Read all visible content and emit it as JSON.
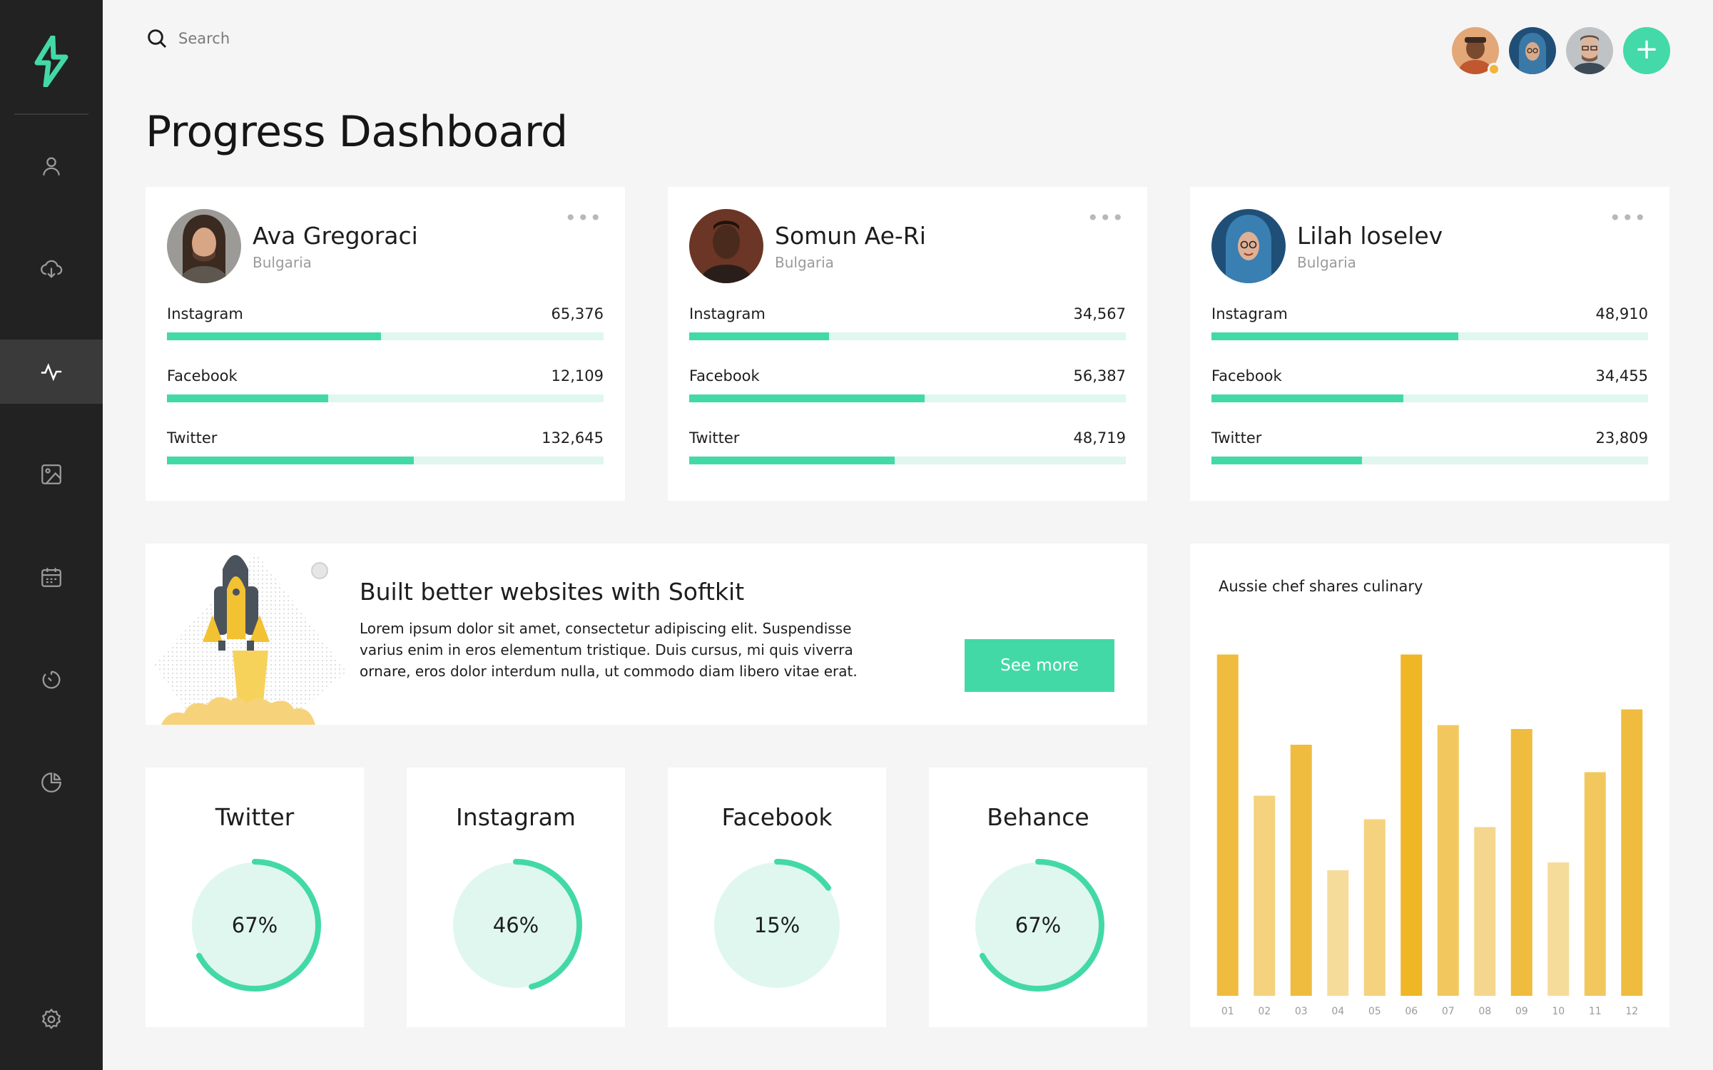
{
  "app": {
    "brand_color": "#43d9a6",
    "sidebar_color": "#222222"
  },
  "sidebar": {
    "items": [
      {
        "icon": "user-icon",
        "active": false
      },
      {
        "icon": "cloud-download-icon",
        "active": false
      },
      {
        "icon": "activity-icon",
        "active": true
      },
      {
        "icon": "image-icon",
        "active": false
      },
      {
        "icon": "calendar-icon",
        "active": false
      },
      {
        "icon": "timer-icon",
        "active": false
      },
      {
        "icon": "pie-chart-icon",
        "active": false
      },
      {
        "icon": "gear-icon",
        "active": false
      }
    ]
  },
  "search": {
    "placeholder": "Search"
  },
  "page": {
    "title": "Progress Dashboard"
  },
  "profiles": [
    {
      "name": "Ava Gregoraci",
      "country": "Bulgaria",
      "metrics": [
        {
          "label": "Instagram",
          "value": "65,376",
          "progress": 0.49
        },
        {
          "label": "Facebook",
          "value": "12,109",
          "progress": 0.37
        },
        {
          "label": "Twitter",
          "value": "132,645",
          "progress": 0.565
        }
      ]
    },
    {
      "name": "Somun Ae-Ri",
      "country": "Bulgaria",
      "metrics": [
        {
          "label": "Instagram",
          "value": "34,567",
          "progress": 0.32
        },
        {
          "label": "Facebook",
          "value": "56,387",
          "progress": 0.54
        },
        {
          "label": "Twitter",
          "value": "48,719",
          "progress": 0.47
        }
      ]
    },
    {
      "name": "Lilah loselev",
      "country": "Bulgaria",
      "metrics": [
        {
          "label": "Instagram",
          "value": "48,910",
          "progress": 0.565
        },
        {
          "label": "Facebook",
          "value": "34,455",
          "progress": 0.44
        },
        {
          "label": "Twitter",
          "value": "23,809",
          "progress": 0.345
        }
      ]
    }
  ],
  "promo": {
    "title": "Built better websites with Softkit",
    "text": "Lorem ipsum dolor sit amet, consectetur adipiscing elit. Suspendisse varius enim in eros elementum tristique. Duis cursus, mi quis viverra ornare, eros dolor interdum nulla, ut commodo diam libero vitae erat.",
    "button_label": "See more"
  },
  "social": [
    {
      "title": "Twitter",
      "label": "67%",
      "value": 0.67
    },
    {
      "title": "Instagram",
      "label": "46%",
      "value": 0.46
    },
    {
      "title": "Facebook",
      "label": "15%",
      "value": 0.15
    },
    {
      "title": "Behance",
      "label": "67%",
      "value": 0.67
    }
  ],
  "chart_data": {
    "type": "bar",
    "title": "Aussie chef shares culinary",
    "categories": [
      "01",
      "02",
      "03",
      "04",
      "05",
      "06",
      "07",
      "08",
      "09",
      "10",
      "11",
      "12"
    ],
    "values": [
      87,
      51,
      64,
      32,
      45,
      87,
      69,
      43,
      68,
      34,
      57,
      73
    ],
    "ylim": [
      0,
      100
    ],
    "grid": false,
    "colors": [
      "#efbc3f",
      "#f4d27e",
      "#efbc3f",
      "#f6dc9b",
      "#f4d27e",
      "#efb626",
      "#f2c85e",
      "#f4d68e",
      "#efbc3f",
      "#f6dc9b",
      "#f2c85e",
      "#efbc3f"
    ]
  }
}
